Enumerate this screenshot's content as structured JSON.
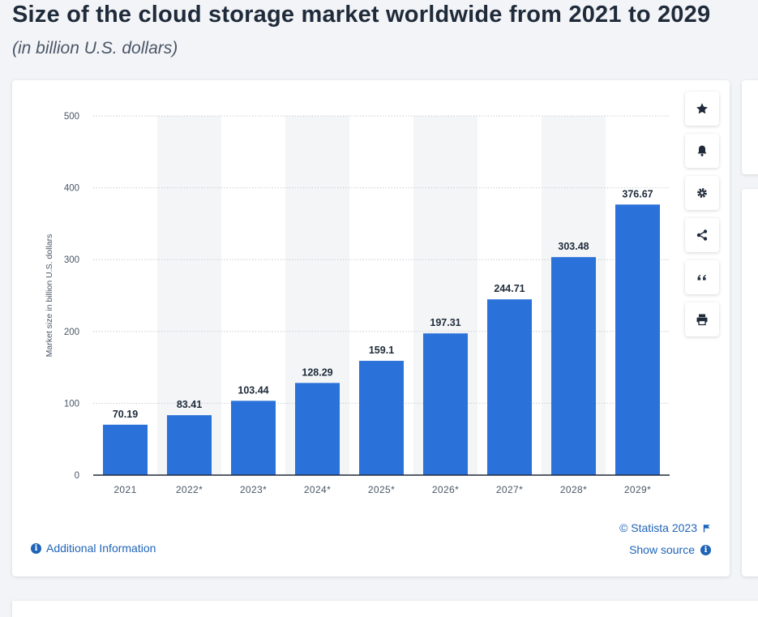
{
  "header": {
    "title": "Size of the cloud storage market worldwide from 2021 to 2029",
    "subtitle": "(in billion U.S. dollars)"
  },
  "toolbar": {
    "buttons": [
      {
        "icon": "star-icon",
        "name": "favorite-button"
      },
      {
        "icon": "bell-icon",
        "name": "notification-button"
      },
      {
        "icon": "gear-icon",
        "name": "settings-button"
      },
      {
        "icon": "share-icon",
        "name": "share-button"
      },
      {
        "icon": "quote-icon",
        "name": "cite-button"
      },
      {
        "icon": "printer-icon",
        "name": "print-button"
      }
    ]
  },
  "footer": {
    "additional_info": "Additional Information",
    "copyright": "© Statista 2023",
    "show_source": "Show source"
  },
  "colors": {
    "bar": "#2a72d9",
    "accent": "#1f64b8",
    "band": "#f4f5f7"
  },
  "chart_data": {
    "type": "bar",
    "categories": [
      "2021",
      "2022*",
      "2023*",
      "2024*",
      "2025*",
      "2026*",
      "2027*",
      "2028*",
      "2029*"
    ],
    "values": [
      70.19,
      83.41,
      103.44,
      128.29,
      159.1,
      197.31,
      244.71,
      303.48,
      376.67
    ],
    "value_labels": [
      "70.19",
      "83.41",
      "103.44",
      "128.29",
      "159.1",
      "197.31",
      "244.71",
      "303.48",
      "376.67"
    ],
    "ylabel": "Market size in billion U.S. dollars",
    "xlabel": "",
    "ylim": [
      0,
      500
    ],
    "yticks": [
      0,
      100,
      200,
      300,
      400,
      500
    ],
    "grid": true
  }
}
